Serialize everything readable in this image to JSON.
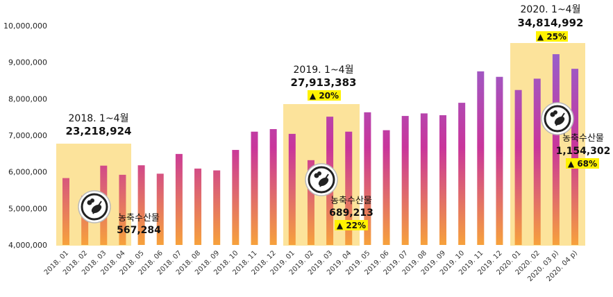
{
  "colors": {
    "bar_top": "#8a6ad8",
    "bar_mid": "#c9359b",
    "bar_bottom": "#f7a23b",
    "highlight_box": "#fbd97a",
    "badge": "#fff200",
    "axis_text": "#222222"
  },
  "chart_data": {
    "type": "bar",
    "title": "",
    "xlabel": "",
    "ylabel": "",
    "ylim": [
      4000000,
      10000000
    ],
    "yticks": [
      "4,000,000",
      "5,000,000",
      "6,000,000",
      "7,000,000",
      "8,000,000",
      "9,000,000",
      "10,000,000"
    ],
    "grid": false,
    "legend": "none",
    "categories": [
      "2018. 01",
      "2018. 02",
      "2018. 03",
      "2018. 04",
      "2018. 05",
      "2018. 06",
      "2018. 07",
      "2018. 08",
      "2018. 09",
      "2018. 10",
      "2018. 11",
      "2018. 12",
      "2019. 01",
      "2019. 02",
      "2019. 03",
      "2019. 04",
      "2019. 05",
      "2019. 06",
      "2019. 07",
      "2019. 08",
      "2019. 09",
      "2019. 10",
      "2019. 11",
      "2019. 12",
      "2020. 01",
      "2020. 02",
      "2020. 03 p)",
      "2020. 04 p)"
    ],
    "values": [
      5830000,
      5350000,
      6170000,
      5920000,
      6180000,
      5950000,
      6490000,
      6090000,
      6040000,
      6600000,
      7100000,
      7170000,
      7040000,
      6320000,
      7510000,
      7100000,
      7630000,
      7140000,
      7530000,
      7600000,
      7550000,
      7890000,
      8750000,
      8600000,
      8240000,
      8550000,
      9220000,
      8820000
    ],
    "highlights": [
      {
        "period": "2018. 1~4월",
        "total": "23,218,924",
        "growth": "",
        "agri_label": "농축수산물",
        "agri_value": "567,284",
        "agri_growth": ""
      },
      {
        "period": "2019. 1~4월",
        "total": "27,913,383",
        "growth": "▲ 20%",
        "agri_label": "농축수산물",
        "agri_value": "689,213",
        "agri_growth": "▲ 22%"
      },
      {
        "period": "2020. 1~4월",
        "total": "34,814,992",
        "growth": "▲ 25%",
        "agri_label": "농축수산물",
        "agri_value": "1,154,302",
        "agri_growth": "▲ 68%"
      }
    ]
  }
}
